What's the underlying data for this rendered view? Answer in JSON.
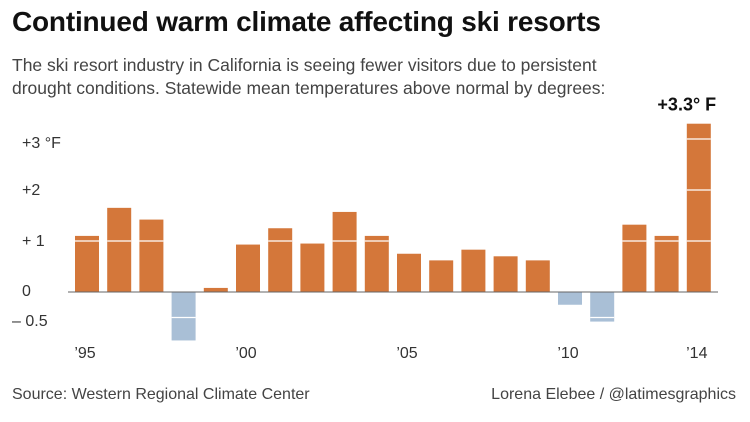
{
  "title": "Continued warm climate affecting ski resorts",
  "subtitle": "The ski resort industry in California is seeing fewer visitors due to persistent drought conditions. Statewide mean temperatures above normal by degrees:",
  "source": "Source: Western Regional Climate Center",
  "credit": "Lorena Elebee / @latimesgraphics",
  "colors": {
    "positive": "#d4773a",
    "negative": "#a9bfd6",
    "axis": "#666666",
    "text": "#444444"
  },
  "chart_data": {
    "type": "bar",
    "title": "Continued warm climate affecting ski resorts",
    "xlabel": "",
    "ylabel": "",
    "ylim": [
      -0.6,
      3.3
    ],
    "grid": false,
    "categories": [
      1995,
      1996,
      1997,
      1998,
      1999,
      2000,
      2001,
      2002,
      2003,
      2004,
      2005,
      2006,
      2007,
      2008,
      2009,
      2010,
      2011,
      2012,
      2013,
      2014
    ],
    "values": [
      1.1,
      1.65,
      1.42,
      -0.95,
      0.08,
      0.93,
      1.25,
      0.95,
      1.57,
      1.1,
      0.75,
      0.62,
      0.83,
      0.7,
      0.62,
      -0.25,
      -0.58,
      1.32,
      1.1,
      3.3
    ],
    "y_ticks": [
      {
        "value": 3,
        "label": "+3 °F"
      },
      {
        "value": 2,
        "label": "+2"
      },
      {
        "value": 1,
        "label": "+ 1"
      },
      {
        "value": 0,
        "label": "0"
      },
      {
        "value": -0.5,
        "label": "– 0.5"
      }
    ],
    "x_ticks": [
      {
        "value": 1995,
        "label": "’95"
      },
      {
        "value": 2000,
        "label": "’00"
      },
      {
        "value": 2005,
        "label": "’05"
      },
      {
        "value": 2010,
        "label": "’10"
      },
      {
        "value": 2014,
        "label": "’14"
      }
    ],
    "annotations": [
      {
        "x": 2014,
        "y": 3.3,
        "text": "+3.3° F"
      }
    ]
  }
}
